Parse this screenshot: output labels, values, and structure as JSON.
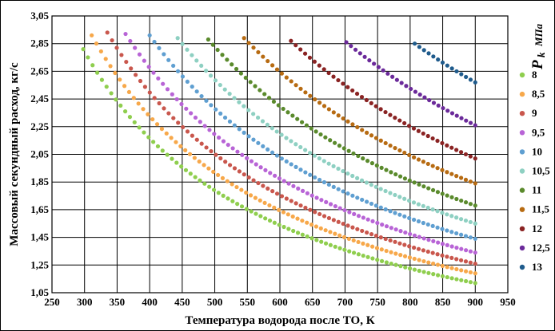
{
  "chart_data": {
    "type": "scatter",
    "xlabel": "Температура водорода после ТО, К",
    "ylabel": "Массовый секундный расход, кг/с",
    "legend_title_main": "P",
    "legend_title_sub": "k",
    "legend_title_unit": "МПа",
    "xlim": [
      250,
      950
    ],
    "ylim": [
      1.05,
      3.05
    ],
    "xticks": [
      "250",
      "300",
      "350",
      "400",
      "450",
      "500",
      "550",
      "600",
      "650",
      "700",
      "750",
      "800",
      "850",
      "900",
      "950"
    ],
    "yticks": [
      "1,05",
      "1,25",
      "1,45",
      "1,65",
      "1,85",
      "2,05",
      "2,25",
      "2,45",
      "2,65",
      "2,85",
      "3,05"
    ],
    "grid": "both",
    "legend_position": "right",
    "series": [
      {
        "name": "8",
        "color": "#8fce4e",
        "x_start": 298,
        "y_start": 2.81,
        "x_end": 900,
        "y_end": 1.12
      },
      {
        "name": "8,5",
        "color": "#f7a84a",
        "x_start": 311,
        "y_start": 2.91,
        "x_end": 900,
        "y_end": 1.19
      },
      {
        "name": "9",
        "color": "#c9574d",
        "x_start": 335,
        "y_start": 2.93,
        "x_end": 900,
        "y_end": 1.26
      },
      {
        "name": "9,5",
        "color": "#b864d6",
        "x_start": 363,
        "y_start": 2.92,
        "x_end": 900,
        "y_end": 1.34
      },
      {
        "name": "10",
        "color": "#5f9fd1",
        "x_start": 400,
        "y_start": 2.91,
        "x_end": 900,
        "y_end": 1.44
      },
      {
        "name": "10,5",
        "color": "#8ed0c2",
        "x_start": 443,
        "y_start": 2.89,
        "x_end": 900,
        "y_end": 1.55
      },
      {
        "name": "11",
        "color": "#5a8a2c",
        "x_start": 490,
        "y_start": 2.88,
        "x_end": 900,
        "y_end": 1.68
      },
      {
        "name": "11,5",
        "color": "#b76b12",
        "x_start": 545,
        "y_start": 2.89,
        "x_end": 900,
        "y_end": 1.84
      },
      {
        "name": "12",
        "color": "#8a2323",
        "x_start": 617,
        "y_start": 2.87,
        "x_end": 900,
        "y_end": 2.02
      },
      {
        "name": "12,5",
        "color": "#6b2a9a",
        "x_start": 702,
        "y_start": 2.86,
        "x_end": 900,
        "y_end": 2.26
      },
      {
        "name": "13",
        "color": "#1f5b8c",
        "x_start": 807,
        "y_start": 2.85,
        "x_end": 900,
        "y_end": 2.57
      }
    ]
  }
}
